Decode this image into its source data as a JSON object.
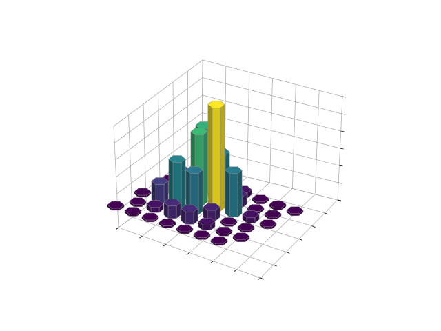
{
  "chart_data": {
    "type": "bar3d-hexagonal",
    "title": "",
    "xlabel": "",
    "ylabel": "",
    "zlabel": "",
    "tick_labels_visible": false,
    "grid": true,
    "colormap": "viridis",
    "grid_rows": 6,
    "grid_cols": 7,
    "zlim": [
      0,
      1
    ],
    "tiles": [
      {
        "row": 0,
        "col": 0,
        "z": 0
      },
      {
        "row": 0,
        "col": 1,
        "z": 0
      },
      {
        "row": 0,
        "col": 2,
        "z": 0
      },
      {
        "row": 0,
        "col": 3,
        "z": 0
      },
      {
        "row": 0,
        "col": 4,
        "z": 0
      },
      {
        "row": 0,
        "col": 5,
        "z": 0
      },
      {
        "row": 0,
        "col": 6,
        "z": 0
      },
      {
        "row": 1,
        "col": 0,
        "z": 0
      },
      {
        "row": 1,
        "col": 1,
        "z": 0.05
      },
      {
        "row": 1,
        "col": 2,
        "z": 0.12
      },
      {
        "row": 1,
        "col": 3,
        "z": 0.12
      },
      {
        "row": 1,
        "col": 4,
        "z": 0.05
      },
      {
        "row": 1,
        "col": 5,
        "z": 0
      },
      {
        "row": 1,
        "col": 6,
        "z": 0
      },
      {
        "row": 2,
        "col": 0,
        "z": 0
      },
      {
        "row": 2,
        "col": 1,
        "z": 0.18
      },
      {
        "row": 2,
        "col": 2,
        "z": 0.45
      },
      {
        "row": 2,
        "col": 3,
        "z": 0.4
      },
      {
        "row": 2,
        "col": 4,
        "z": 0.1
      },
      {
        "row": 2,
        "col": 5,
        "z": 0
      },
      {
        "row": 2,
        "col": 6,
        "z": 0
      },
      {
        "row": 3,
        "col": 0,
        "z": 0
      },
      {
        "row": 3,
        "col": 1,
        "z": 0.25
      },
      {
        "row": 3,
        "col": 2,
        "z": 0.68
      },
      {
        "row": 3,
        "col": 3,
        "z": 1.0
      },
      {
        "row": 3,
        "col": 4,
        "z": 0.42
      },
      {
        "row": 3,
        "col": 5,
        "z": 0.05
      },
      {
        "row": 3,
        "col": 6,
        "z": 0
      },
      {
        "row": 4,
        "col": 0,
        "z": 0
      },
      {
        "row": 4,
        "col": 1,
        "z": 0.12
      },
      {
        "row": 4,
        "col": 2,
        "z": 0.65
      },
      {
        "row": 4,
        "col": 3,
        "z": 0.45
      },
      {
        "row": 4,
        "col": 4,
        "z": 0.1
      },
      {
        "row": 4,
        "col": 5,
        "z": 0
      },
      {
        "row": 4,
        "col": 6,
        "z": 0
      },
      {
        "row": 5,
        "col": 0,
        "z": 0
      },
      {
        "row": 5,
        "col": 1,
        "z": 0
      },
      {
        "row": 5,
        "col": 2,
        "z": 0.05
      },
      {
        "row": 5,
        "col": 3,
        "z": 0.05
      },
      {
        "row": 5,
        "col": 4,
        "z": 0
      },
      {
        "row": 5,
        "col": 5,
        "z": 0
      },
      {
        "row": 5,
        "col": 6,
        "z": 0
      }
    ]
  }
}
